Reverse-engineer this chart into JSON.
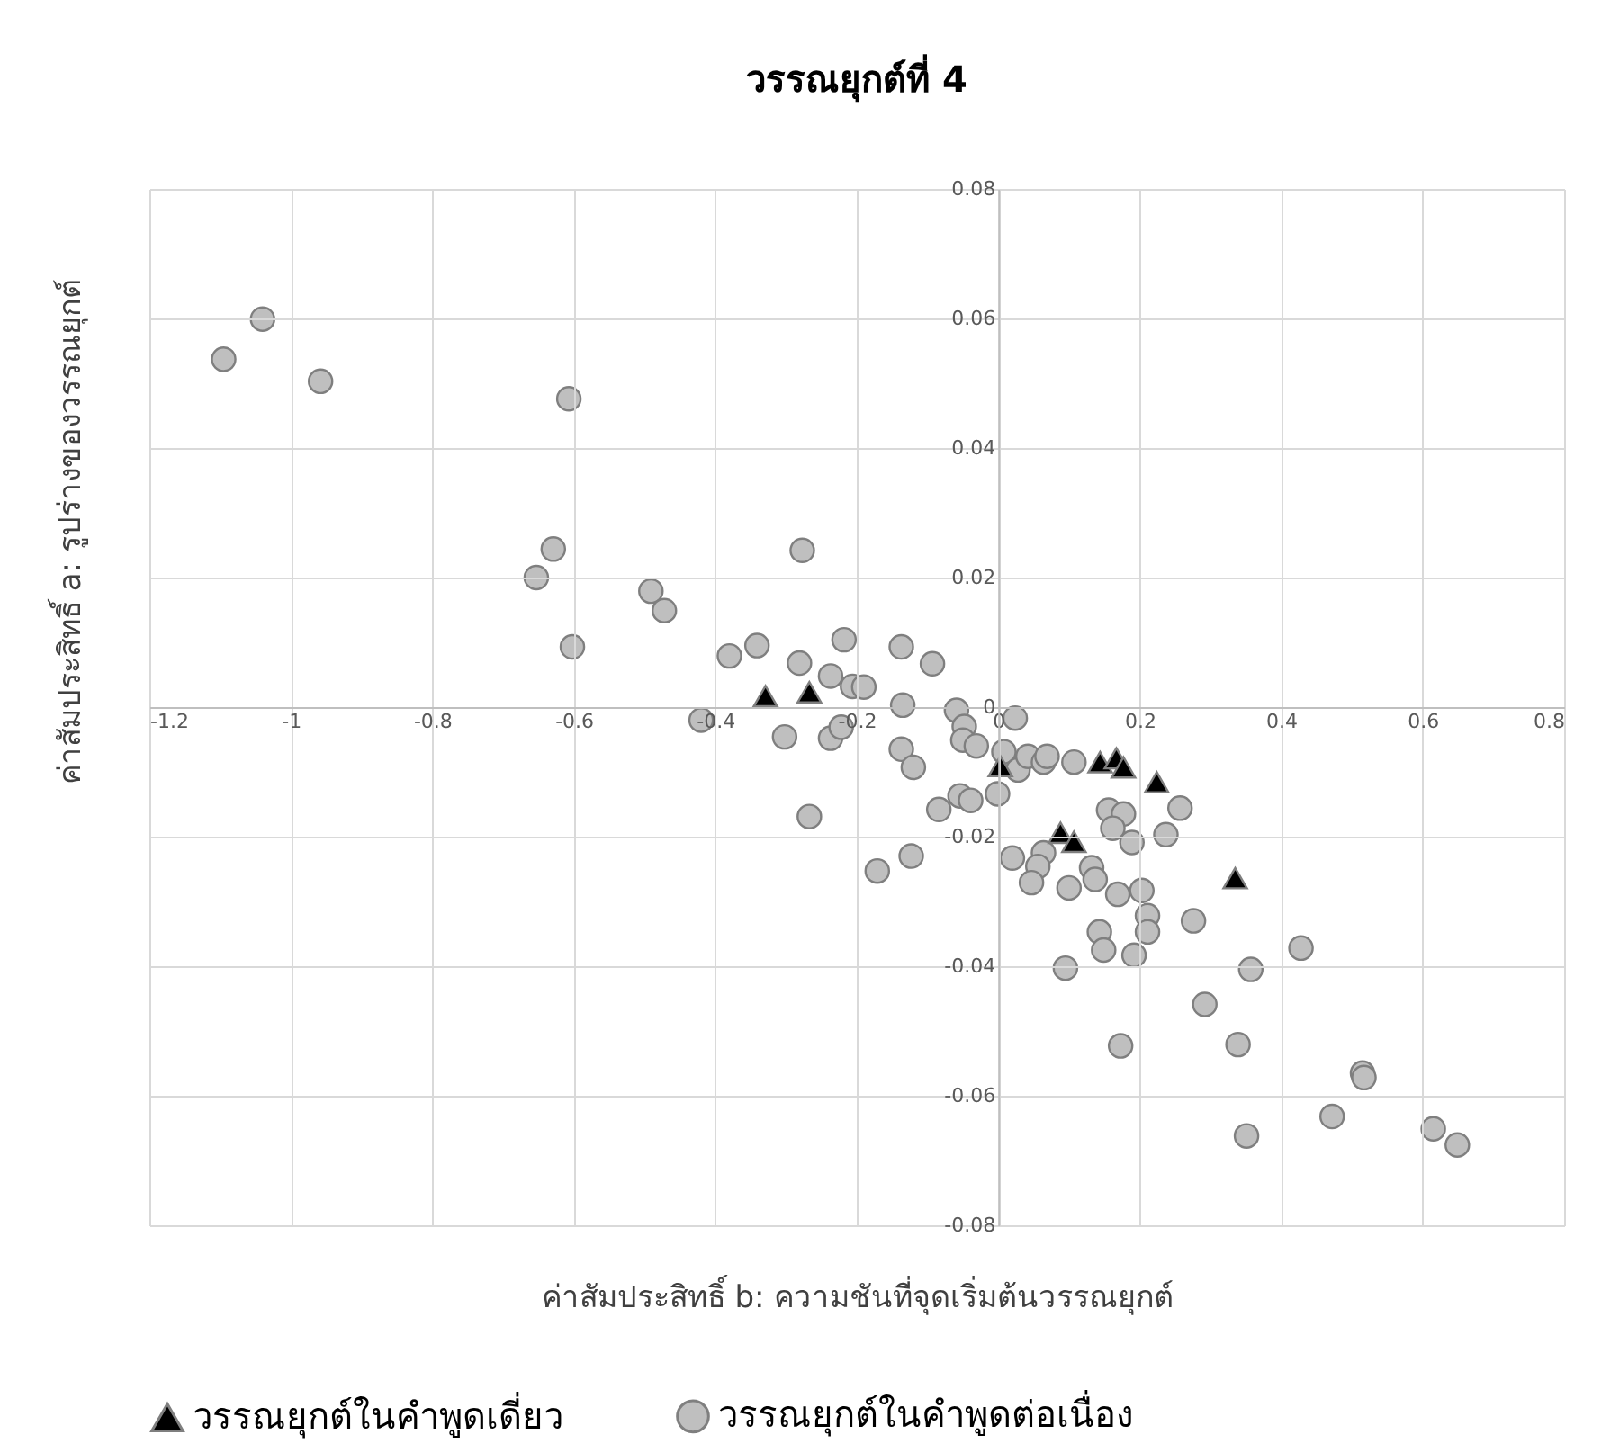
{
  "chart_data": {
    "type": "scatter",
    "title": "วรรณยุกต์ที่ 4",
    "xlabel": "ค่าสัมประสิทธิ์ b: ความชันที่จุดเริ่มต้นวรรณยุกต์",
    "ylabel": "ค่าสัมประสิทธิ์ a: รูปร่างของวรรณยุกต์",
    "xlim": [
      -1.2,
      0.8
    ],
    "xticks": [
      -1.2,
      -1,
      -0.8,
      -0.6,
      -0.4,
      -0.2,
      0,
      0.2,
      0.4,
      0.6,
      0.8
    ],
    "ylim": [
      -0.08,
      0.08
    ],
    "yticks": [
      -0.08,
      -0.06,
      -0.04,
      -0.02,
      0,
      0.02,
      0.04,
      0.06,
      0.08
    ],
    "grid": true,
    "legend": "bottom",
    "series": [
      {
        "name": "วรรณยุกต์ในคำพูดเดี่ยว",
        "color": "#000000",
        "marker": "triangle",
        "x": [
          -0.329,
          -0.267,
          0.003,
          0.144,
          0.167,
          0.177,
          0.224,
          0.088,
          0.107,
          0.335
        ],
        "values": [
          0.0017,
          0.0023,
          -0.0091,
          -0.0085,
          -0.0079,
          -0.0093,
          -0.0116,
          -0.0194,
          -0.0208,
          -0.0264
        ]
      },
      {
        "name": "วรรณยุกต์ในคำพูดต่อเนื่อง",
        "color": "#bfbfbf",
        "marker": "circle",
        "x": [
          -1.095,
          -1.04,
          -0.958,
          -0.607,
          -0.629,
          -0.653,
          -0.491,
          -0.472,
          -0.602,
          -0.42,
          -0.38,
          -0.341,
          -0.277,
          -0.281,
          -0.302,
          -0.267,
          -0.237,
          -0.218,
          -0.206,
          -0.19,
          -0.237,
          -0.222,
          -0.137,
          -0.135,
          -0.137,
          -0.12,
          -0.093,
          -0.171,
          -0.123,
          -0.084,
          -0.059,
          -0.048,
          -0.05,
          -0.031,
          -0.054,
          -0.039,
          -0.001,
          0.008,
          0.024,
          0.028,
          0.042,
          0.064,
          0.069,
          0.107,
          0.02,
          0.064,
          0.056,
          0.047,
          0.1,
          0.095,
          0.132,
          0.137,
          0.143,
          0.149,
          0.156,
          0.177,
          0.162,
          0.189,
          0.169,
          0.203,
          0.211,
          0.211,
          0.192,
          0.173,
          0.257,
          0.237,
          0.276,
          0.292,
          0.339,
          0.357,
          0.351,
          0.428,
          0.472,
          0.515,
          0.517,
          0.615,
          0.649
        ],
        "values": [
          0.0537,
          0.0599,
          0.0503,
          0.0476,
          0.0244,
          0.02,
          0.0179,
          0.0149,
          0.0093,
          -0.002,
          0.0079,
          0.0095,
          0.0242,
          0.0068,
          -0.0046,
          -0.0169,
          0.0048,
          0.0104,
          0.0032,
          0.0031,
          -0.0048,
          -0.0031,
          0.0093,
          0.0003,
          -0.0065,
          -0.0093,
          0.0067,
          -0.0253,
          -0.023,
          -0.0158,
          -0.0005,
          -0.003,
          -0.0051,
          -0.006,
          -0.0137,
          -0.0144,
          -0.0134,
          -0.0069,
          -0.0017,
          -0.0097,
          -0.0076,
          -0.0085,
          -0.0076,
          -0.0085,
          -0.0233,
          -0.0225,
          -0.0246,
          -0.0271,
          -0.0279,
          -0.0403,
          -0.0248,
          -0.0266,
          -0.0347,
          -0.0375,
          -0.0159,
          -0.0165,
          -0.0187,
          -0.0209,
          -0.0289,
          -0.0283,
          -0.0322,
          -0.0347,
          -0.0383,
          -0.0523,
          -0.0156,
          -0.0197,
          -0.033,
          -0.0459,
          -0.0521,
          -0.0405,
          -0.0662,
          -0.0372,
          -0.0632,
          -0.0565,
          -0.0572,
          -0.0651,
          -0.0676
        ]
      }
    ]
  }
}
